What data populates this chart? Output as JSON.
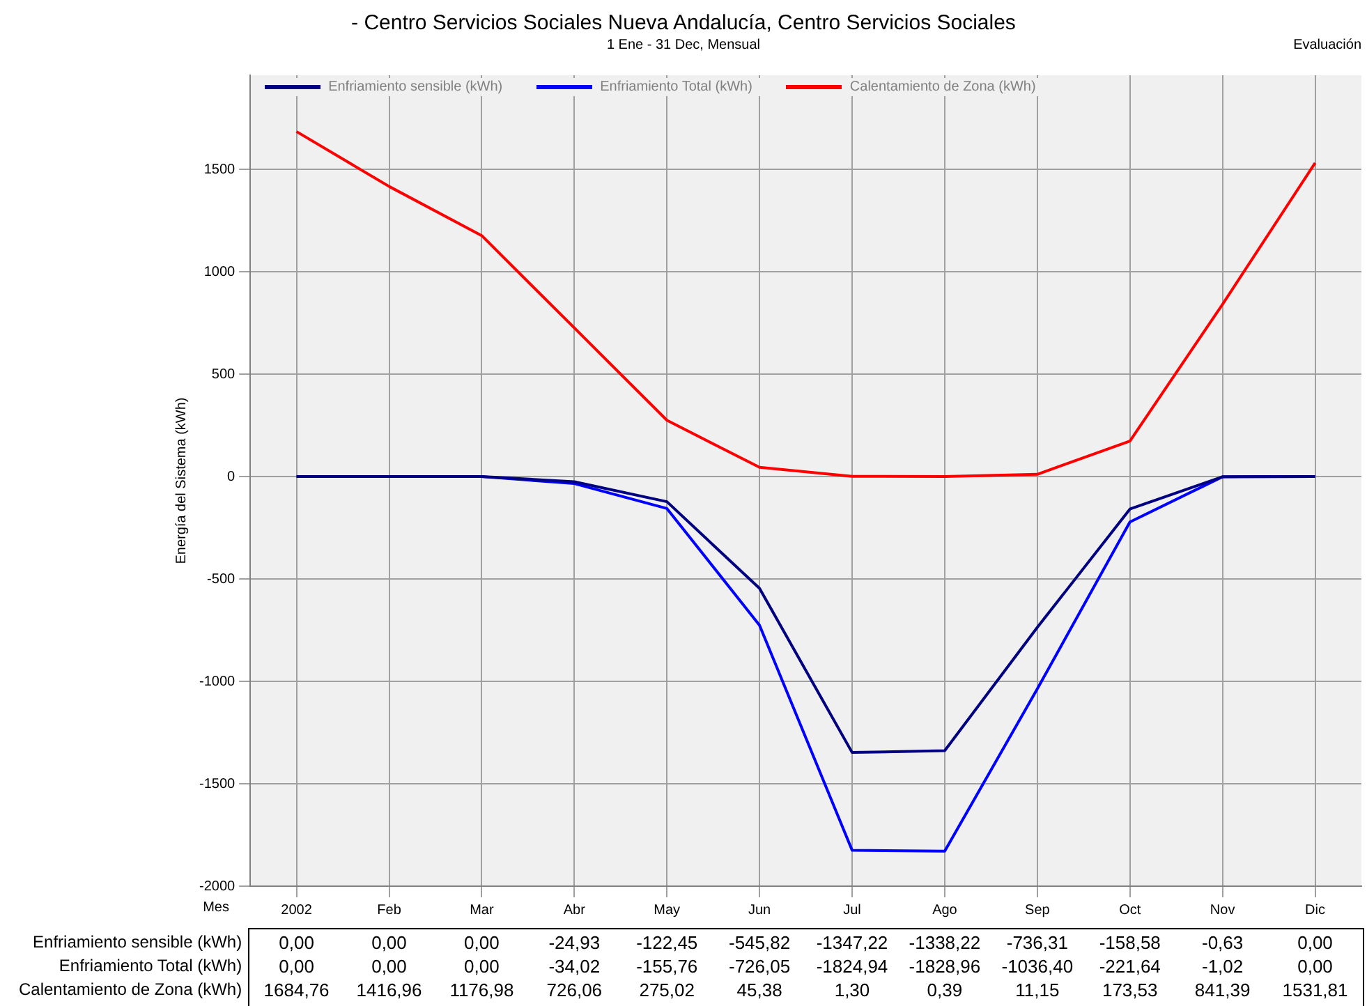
{
  "chart_data": {
    "type": "line",
    "title": "- Centro Servicios Sociales Nueva Andalucía, Centro Servicios Sociales",
    "subtitle": "1 Ene - 31 Dec, Mensual",
    "annotations": [
      "Evaluación"
    ],
    "xlabel": "Mes",
    "ylabel": "Energía del Sistema (kWh)",
    "categories": [
      "2002",
      "Feb",
      "Mar",
      "Abr",
      "May",
      "Jun",
      "Jul",
      "Ago",
      "Sep",
      "Oct",
      "Nov",
      "Dic"
    ],
    "series": [
      {
        "name": "Enfriamiento sensible (kWh)",
        "color": "#000080",
        "values": [
          0,
          0,
          0,
          -24.93,
          -122.45,
          -545.82,
          -1347.22,
          -1338.22,
          -736.31,
          -158.58,
          -0.63,
          0
        ],
        "value_labels": [
          "0,00",
          "0,00",
          "0,00",
          "-24,93",
          "-122,45",
          "-545,82",
          "-1347,22",
          "-1338,22",
          "-736,31",
          "-158,58",
          "-0,63",
          "0,00"
        ]
      },
      {
        "name": "Enfriamiento Total (kWh)",
        "color": "#0000ff",
        "values": [
          0,
          0,
          0,
          -34.02,
          -155.76,
          -726.05,
          -1824.94,
          -1828.96,
          -1036.4,
          -221.64,
          -1.02,
          0
        ],
        "value_labels": [
          "0,00",
          "0,00",
          "0,00",
          "-34,02",
          "-155,76",
          "-726,05",
          "-1824,94",
          "-1828,96",
          "-1036,40",
          "-221,64",
          "-1,02",
          "0,00"
        ]
      },
      {
        "name": "Calentamiento de Zona (kWh)",
        "color": "#ff0000",
        "values": [
          1684.76,
          1416.96,
          1176.98,
          726.06,
          275.02,
          45.38,
          1.3,
          0.39,
          11.15,
          173.53,
          841.39,
          1531.81
        ],
        "value_labels": [
          "1684,76",
          "1416,96",
          "1176,98",
          "726,06",
          "275,02",
          "45,38",
          "1,30",
          "0,39",
          "11,15",
          "173,53",
          "841,39",
          "1531,81"
        ]
      }
    ],
    "ylim": [
      -2000,
      1960
    ],
    "yticks": [
      -2000,
      -1500,
      -1000,
      -500,
      0,
      500,
      1000,
      1500
    ],
    "grid": true,
    "legend": "top left",
    "marker": "none",
    "line_style": "solid"
  }
}
